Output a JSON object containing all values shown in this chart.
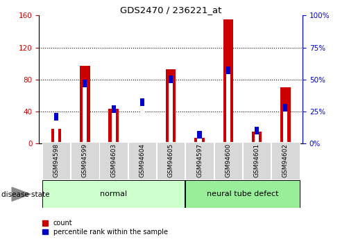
{
  "title": "GDS2470 / 236221_at",
  "samples": [
    "GSM94598",
    "GSM94599",
    "GSM94603",
    "GSM94604",
    "GSM94605",
    "GSM94597",
    "GSM94600",
    "GSM94601",
    "GSM94602"
  ],
  "count_values": [
    18,
    97,
    43,
    2,
    93,
    7,
    155,
    15,
    70
  ],
  "percentile_values": [
    21,
    47,
    27,
    32,
    50,
    7,
    57,
    10,
    28
  ],
  "normal_indices": [
    0,
    1,
    2,
    3,
    4
  ],
  "neural_indices": [
    5,
    6,
    7,
    8
  ],
  "red_color": "#cc0000",
  "blue_color": "#0000cc",
  "left_ylim": [
    0,
    160
  ],
  "right_ylim": [
    0,
    100
  ],
  "left_yticks": [
    0,
    40,
    80,
    120,
    160
  ],
  "right_yticks": [
    0,
    25,
    50,
    75,
    100
  ],
  "normal_color": "#ccffcc",
  "neural_color": "#99ee99",
  "label_bg_color": "#d8d8d8",
  "legend_count": "count",
  "legend_percentile": "percentile rank within the sample",
  "disease_state_label": "disease state",
  "normal_label": "normal",
  "neural_label": "neural tube defect"
}
